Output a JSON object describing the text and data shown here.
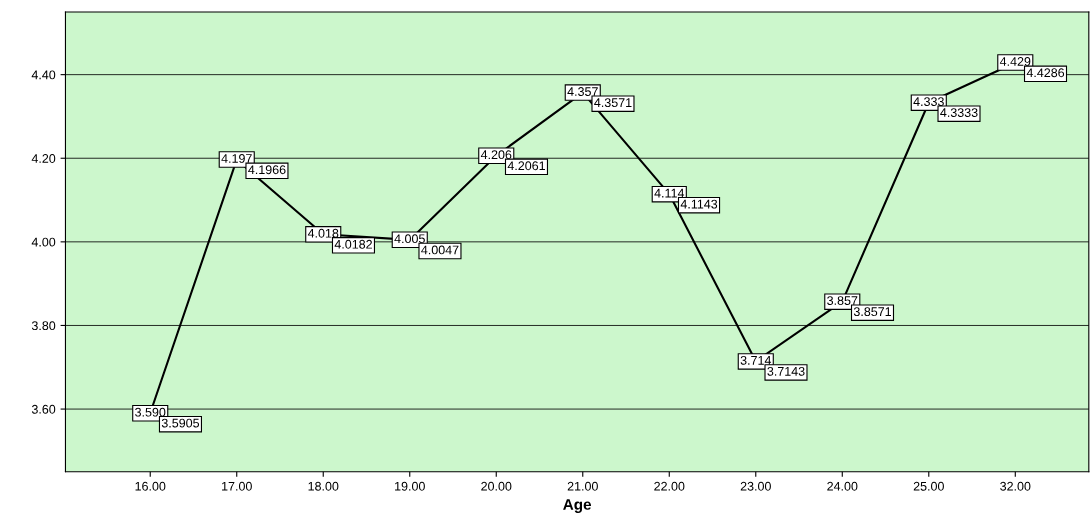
{
  "chart_data": {
    "type": "line",
    "xlabel": "Age",
    "categories": [
      "16.00",
      "17.00",
      "18.00",
      "19.00",
      "20.00",
      "21.00",
      "22.00",
      "23.00",
      "24.00",
      "25.00",
      "32.00"
    ],
    "series": [
      {
        "color": "#000000",
        "values": [
          3.5905,
          4.1966,
          4.0182,
          4.0047,
          4.2061,
          4.3571,
          4.1143,
          3.7143,
          3.8571,
          4.3333,
          4.4286
        ]
      }
    ],
    "data_labels": true,
    "annotations": [
      {
        "text": "3.590",
        "x": "16.00",
        "y": 3.59
      },
      {
        "text": "4.197",
        "x": "17.00",
        "y": 4.197
      },
      {
        "text": "4.018",
        "x": "18.00",
        "y": 4.018
      },
      {
        "text": "4.005",
        "x": "19.00",
        "y": 4.005
      },
      {
        "text": "4.206",
        "x": "20.00",
        "y": 4.206
      },
      {
        "text": "4.357",
        "x": "21.00",
        "y": 4.357
      },
      {
        "text": "4.114",
        "x": "22.00",
        "y": 4.114
      },
      {
        "text": "3.714",
        "x": "23.00",
        "y": 3.714
      },
      {
        "text": "3.857",
        "x": "24.00",
        "y": 3.857
      },
      {
        "text": "4.333",
        "x": "25.00",
        "y": 4.333
      },
      {
        "text": "4.429",
        "x": "32.00",
        "y": 4.429
      }
    ],
    "ylim": [
      3.45,
      4.55
    ],
    "yticks": [
      {
        "value": 3.6,
        "label": "3.60"
      },
      {
        "value": 3.8,
        "label": "3.80"
      },
      {
        "value": 4.0,
        "label": "4.00"
      },
      {
        "value": 4.2,
        "label": "4.20"
      },
      {
        "value": 4.4,
        "label": "4.40"
      }
    ],
    "grid": "y",
    "legend": false,
    "marker": "square",
    "line_style": "solid"
  }
}
